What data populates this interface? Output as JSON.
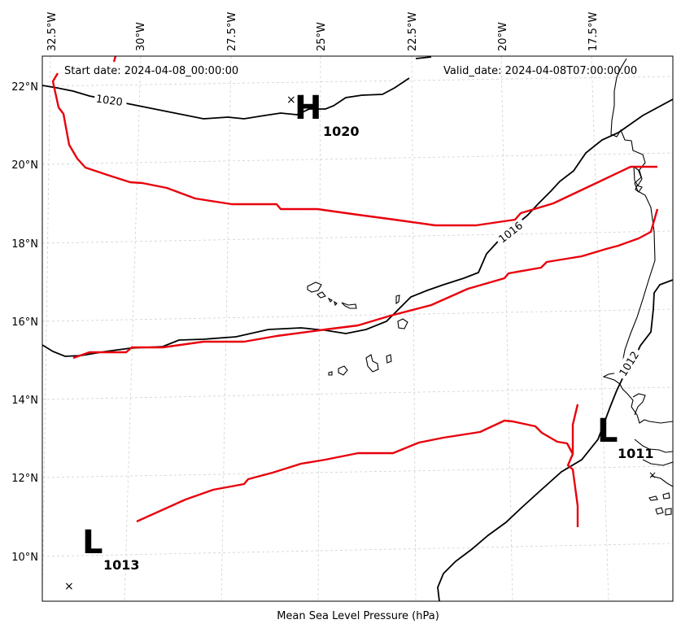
{
  "map": {
    "start_date_text": "Start date: 2024-04-08_00:00:00",
    "valid_date_text": "Valid_date: 2024-04-08T07:00:00.00",
    "xlabel": "Mean Sea Level Pressure (hPa)",
    "lon_ticks": [
      "32.5°W",
      "30°W",
      "27.5°W",
      "25°W",
      "22.5°W",
      "20°W",
      "17.5°W"
    ],
    "lat_ticks": [
      "22°N",
      "20°N",
      "18°N",
      "16°N",
      "14°N",
      "12°N",
      "10°N"
    ],
    "isobar_labels": [
      "1020",
      "1016",
      "1012"
    ],
    "pressure_centers": [
      {
        "type": "H",
        "value": "1020"
      },
      {
        "type": "L",
        "value": "1011"
      },
      {
        "type": "L",
        "value": "1013"
      }
    ],
    "colors": {
      "isobar": "#000000",
      "front": "#e8000b",
      "coast": "#000000",
      "grid": "#cccccc"
    }
  }
}
